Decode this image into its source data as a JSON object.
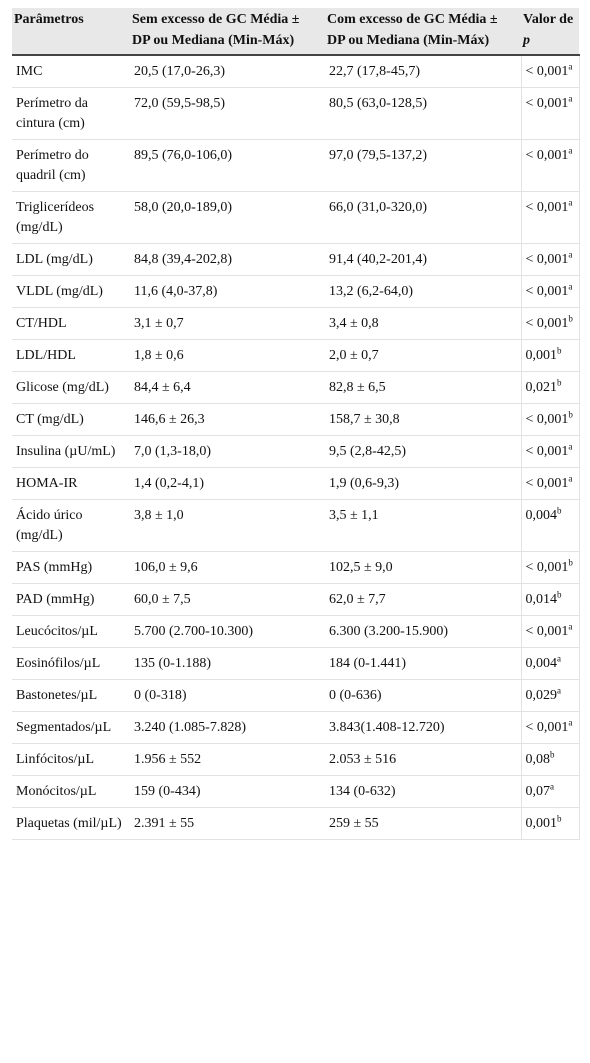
{
  "table": {
    "header": [
      "Parâmetros",
      "Sem excesso de GC Média ± DP ou Mediana (Min-Máx)",
      "Com excesso de GC Média ± DP ou Mediana (Min-Máx)",
      {
        "text": "Valor de",
        "italic": "p"
      }
    ],
    "rows": [
      [
        "IMC",
        "20,5 (17,0-26,3)",
        "22,7 (17,8-45,7)",
        {
          "value": "< 0,001",
          "note": "a"
        }
      ],
      [
        "Perímetro da cintura (cm)",
        "72,0 (59,5-98,5)",
        "80,5 (63,0-128,5)",
        {
          "value": "< 0,001",
          "note": "a"
        }
      ],
      [
        "Perímetro do quadril (cm)",
        "89,5 (76,0-106,0)",
        "97,0 (79,5-137,2)",
        {
          "value": "< 0,001",
          "note": "a"
        }
      ],
      [
        "Triglicerídeos (mg/dL)",
        "58,0 (20,0-189,0)",
        "66,0 (31,0-320,0)",
        {
          "value": "< 0,001",
          "note": "a"
        }
      ],
      [
        "LDL (mg/dL)",
        "84,8 (39,4-202,8)",
        "91,4 (40,2-201,4)",
        {
          "value": "< 0,001",
          "note": "a"
        }
      ],
      [
        "VLDL (mg/dL)",
        "11,6 (4,0-37,8)",
        "13,2 (6,2-64,0)",
        {
          "value": "< 0,001",
          "note": "a"
        }
      ],
      [
        "CT/HDL",
        "3,1 ± 0,7",
        "3,4 ± 0,8",
        {
          "value": "< 0,001",
          "note": "b"
        }
      ],
      [
        "LDL/HDL",
        "1,8 ± 0,6",
        "2,0 ± 0,7",
        {
          "value": "0,001",
          "note": "b"
        }
      ],
      [
        "Glicose (mg/dL)",
        "84,4 ± 6,4",
        "82,8 ± 6,5",
        {
          "value": "0,021",
          "note": "b"
        }
      ],
      [
        "CT (mg/dL)",
        "146,6 ± 26,3",
        "158,7 ± 30,8",
        {
          "value": "< 0,001",
          "note": "b"
        }
      ],
      [
        "Insulina (µU/mL)",
        "7,0 (1,3-18,0)",
        "9,5 (2,8-42,5)",
        {
          "value": "< 0,001",
          "note": "a"
        }
      ],
      [
        "HOMA-IR",
        "1,4 (0,2-4,1)",
        "1,9 (0,6-9,3)",
        {
          "value": "< 0,001",
          "note": "a"
        }
      ],
      [
        "Ácido úrico (mg/dL)",
        "3,8 ± 1,0",
        "3,5 ± 1,1",
        {
          "value": "0,004",
          "note": "b"
        }
      ],
      [
        "PAS (mmHg)",
        "106,0 ± 9,6",
        "102,5 ± 9,0",
        {
          "value": "< 0,001",
          "note": "b"
        }
      ],
      [
        "PAD (mmHg)",
        "60,0 ± 7,5",
        "62,0 ± 7,7",
        {
          "value": "0,014",
          "note": "b"
        }
      ],
      [
        "Leucócitos/µL",
        "5.700 (2.700-10.300)",
        "6.300 (3.200-15.900)",
        {
          "value": "< 0,001",
          "note": "a"
        }
      ],
      [
        "Eosinófilos/µL",
        "135 (0-1.188)",
        "184 (0-1.441)",
        {
          "value": "0,004",
          "note": "a"
        }
      ],
      [
        "Bastonetes/µL",
        "0 (0-318)",
        "0 (0-636)",
        {
          "value": "0,029",
          "note": "a"
        }
      ],
      [
        "Segmentados/µL",
        "3.240 (1.085-7.828)",
        "3.843(1.408-12.720)",
        {
          "value": "< 0,001",
          "note": "a"
        }
      ],
      [
        "Linfócitos/µL",
        "1.956 ± 552",
        "2.053 ± 516",
        {
          "value": "0,08",
          "note": "b"
        }
      ],
      [
        "Monócitos/µL",
        "159 (0-434)",
        "134 (0-632)",
        {
          "value": "0,07",
          "note": "a"
        }
      ],
      [
        "Plaquetas (mil/µL)",
        "2.391 ± 55",
        "259 ± 55",
        {
          "value": "0,001",
          "note": "b"
        }
      ]
    ]
  }
}
